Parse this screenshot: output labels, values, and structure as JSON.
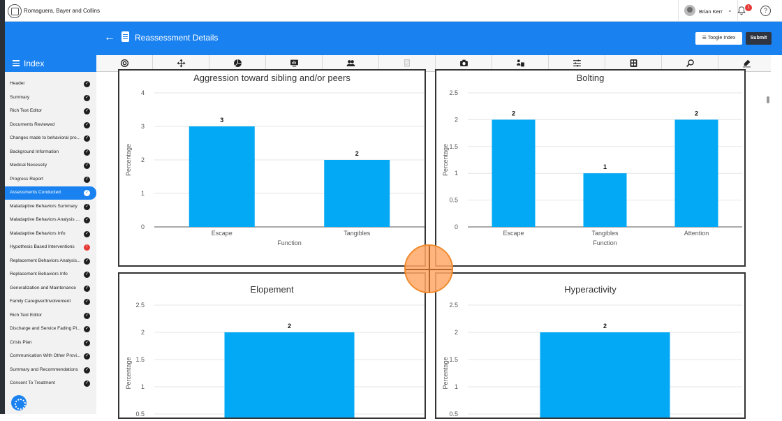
{
  "topbar": {
    "company": "Romaguera, Bayer and Collins",
    "user": "Brian Kerr",
    "notifications": "1",
    "help": "?"
  },
  "header": {
    "title": "Reassessment Details",
    "toggle_index": "Toogle Index",
    "submit": "Submit"
  },
  "sidebar": {
    "title": "Index",
    "items": [
      {
        "label": "Header",
        "status": "done"
      },
      {
        "label": "Summary",
        "status": "done"
      },
      {
        "label": "Rich Text Editor",
        "status": "done"
      },
      {
        "label": "Documents Reviewed",
        "status": "done"
      },
      {
        "label": "Changes made to behavioral pro...",
        "status": "done"
      },
      {
        "label": "Background Information",
        "status": "done"
      },
      {
        "label": "Medical Necessity",
        "status": "done"
      },
      {
        "label": "Progress Report",
        "status": "done"
      },
      {
        "label": "Assessments Conducted",
        "status": "done",
        "active": true
      },
      {
        "label": "Maladaptive Behaviors Summary",
        "status": "done"
      },
      {
        "label": "Maladaptive Behaviors Analysis ...",
        "status": "done"
      },
      {
        "label": "Maladaptive Behaviors Info",
        "status": "done"
      },
      {
        "label": "Hypothesis Based Interventions",
        "status": "warning"
      },
      {
        "label": "Replacement Behaviors Analysis...",
        "status": "done"
      },
      {
        "label": "Replacement Behaviors Info",
        "status": "done"
      },
      {
        "label": "Generalization and Maintenance",
        "status": "done"
      },
      {
        "label": "Family Caregiver/Involvement",
        "status": "done"
      },
      {
        "label": "Rich Text Editor",
        "status": "done"
      },
      {
        "label": "Discharge and Service Fading Pl...",
        "status": "done"
      },
      {
        "label": "Crisis Plan",
        "status": "done"
      },
      {
        "label": "Communication With Other Provi...",
        "status": "done"
      },
      {
        "label": "Summary and Recommendations",
        "status": "done"
      },
      {
        "label": "Consent To Treatment",
        "status": "done"
      }
    ]
  },
  "toolbar_icons": [
    "target-icon",
    "arrows-icon",
    "pie-icon",
    "presentation-icon",
    "users-icon",
    "document-disabled-icon",
    "camera-icon",
    "user-board-icon",
    "sliders-icon",
    "abc-icon",
    "search-icon",
    "signature-icon"
  ],
  "colors": {
    "primary": "#1a82f0",
    "bar": "#03a9f4",
    "dark": "#2e3440",
    "warning": "#e53935"
  },
  "chart_data": [
    {
      "type": "bar",
      "title": "Aggression toward sibling and/or peers",
      "categories": [
        "Escape",
        "Tangibles"
      ],
      "values": [
        3,
        2
      ],
      "xlabel": "Function",
      "ylabel": "Percentage",
      "ylim": [
        0,
        4
      ],
      "yticks": [
        "0",
        "1",
        "2",
        "3",
        "4"
      ],
      "grid": true
    },
    {
      "type": "bar",
      "title": "Bolting",
      "categories": [
        "Escape",
        "Tangibles",
        "Attention"
      ],
      "values": [
        2,
        1,
        2
      ],
      "xlabel": "Function",
      "ylabel": "Percentage",
      "ylim": [
        0,
        2.5
      ],
      "yticks": [
        "0",
        "0.5",
        "1",
        "1.5",
        "2",
        "2.5"
      ],
      "grid": true
    },
    {
      "type": "bar",
      "title": "Elopement",
      "categories": [
        ""
      ],
      "values": [
        2
      ],
      "xlabel": "",
      "ylabel": "Percentage",
      "ylim": [
        0,
        2.5
      ],
      "yticks": [
        "0.5",
        "1",
        "1.5",
        "2",
        "2.5"
      ],
      "grid": true
    },
    {
      "type": "bar",
      "title": "Hyperactivity",
      "categories": [
        ""
      ],
      "values": [
        2
      ],
      "xlabel": "",
      "ylabel": "Percentage",
      "ylim": [
        0,
        2.5
      ],
      "yticks": [
        "0.5",
        "1",
        "1.5",
        "2",
        "2.5"
      ],
      "grid": true
    }
  ]
}
